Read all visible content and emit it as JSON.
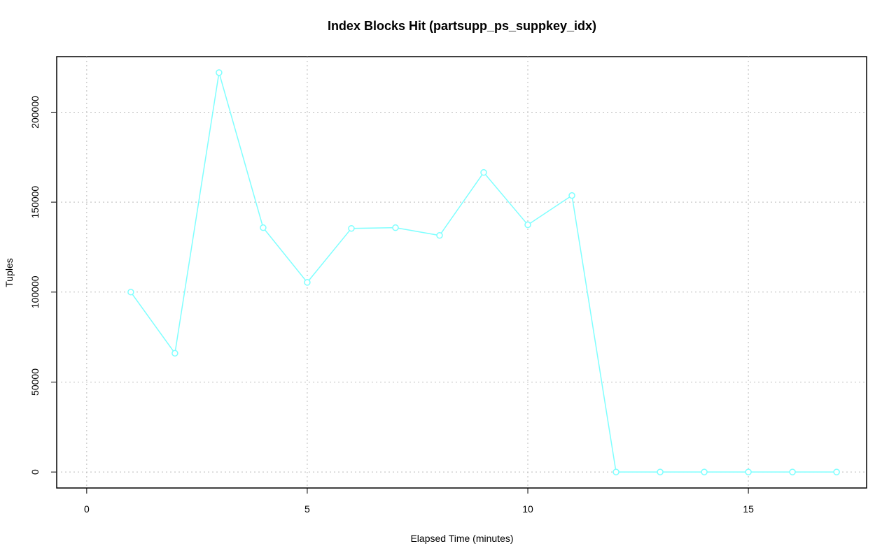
{
  "chart_data": {
    "type": "line",
    "title": "Index Blocks Hit (partsupp_ps_suppkey_idx)",
    "x_label": "Elapsed Time (minutes)",
    "y_label": "Tuples",
    "x": [
      1,
      2,
      3,
      4,
      5,
      6,
      7,
      8,
      9,
      10,
      11,
      12,
      13,
      14,
      15,
      16,
      17
    ],
    "series": [
      {
        "name": "Index Blocks Hit",
        "color": "#7fffff",
        "values": [
          100000,
          66000,
          222000,
          135800,
          105400,
          135400,
          135800,
          131500,
          166500,
          137400,
          153700,
          0,
          0,
          0,
          0,
          0,
          0
        ]
      }
    ],
    "xlim": [
      -0.68,
      17.68
    ],
    "xticks": [
      0,
      5,
      10,
      15
    ],
    "ylim": [
      -8880,
      230880
    ],
    "yticks": [
      0,
      50000,
      100000,
      150000,
      200000
    ],
    "grid": true
  }
}
